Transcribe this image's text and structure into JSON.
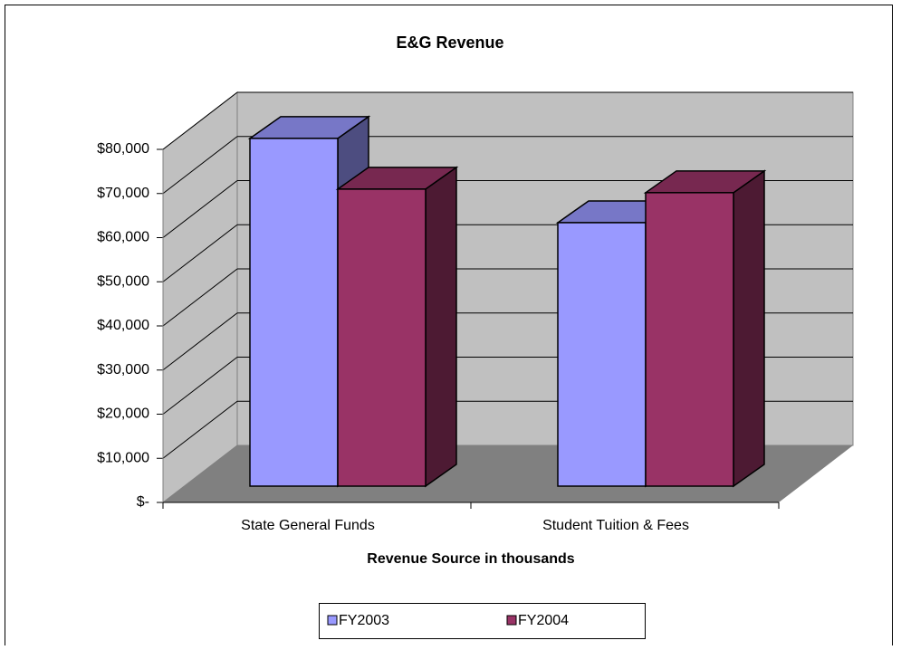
{
  "chart_data": {
    "type": "bar3d",
    "title": "E&G Revenue",
    "x_label": "Revenue Source in thousands",
    "categories": [
      "State General Funds",
      "Student Tuition & Fees"
    ],
    "series": [
      {
        "name": "FY2003",
        "color": "#9999ff",
        "values": [
          78800,
          59700
        ]
      },
      {
        "name": "FY2004",
        "color": "#993366",
        "values": [
          67300,
          66500
        ]
      }
    ],
    "ylim": [
      0,
      80000
    ],
    "yticks": [
      {
        "value": 0,
        "label": "$-"
      },
      {
        "value": 10000,
        "label": "$10,000"
      },
      {
        "value": 20000,
        "label": "$20,000"
      },
      {
        "value": 30000,
        "label": "$30,000"
      },
      {
        "value": 40000,
        "label": "$40,000"
      },
      {
        "value": 50000,
        "label": "$50,000"
      },
      {
        "value": 60000,
        "label": "$60,000"
      },
      {
        "value": 70000,
        "label": "$70,000"
      },
      {
        "value": 80000,
        "label": "$80,000"
      }
    ],
    "grid": true,
    "legend": "bottom"
  }
}
